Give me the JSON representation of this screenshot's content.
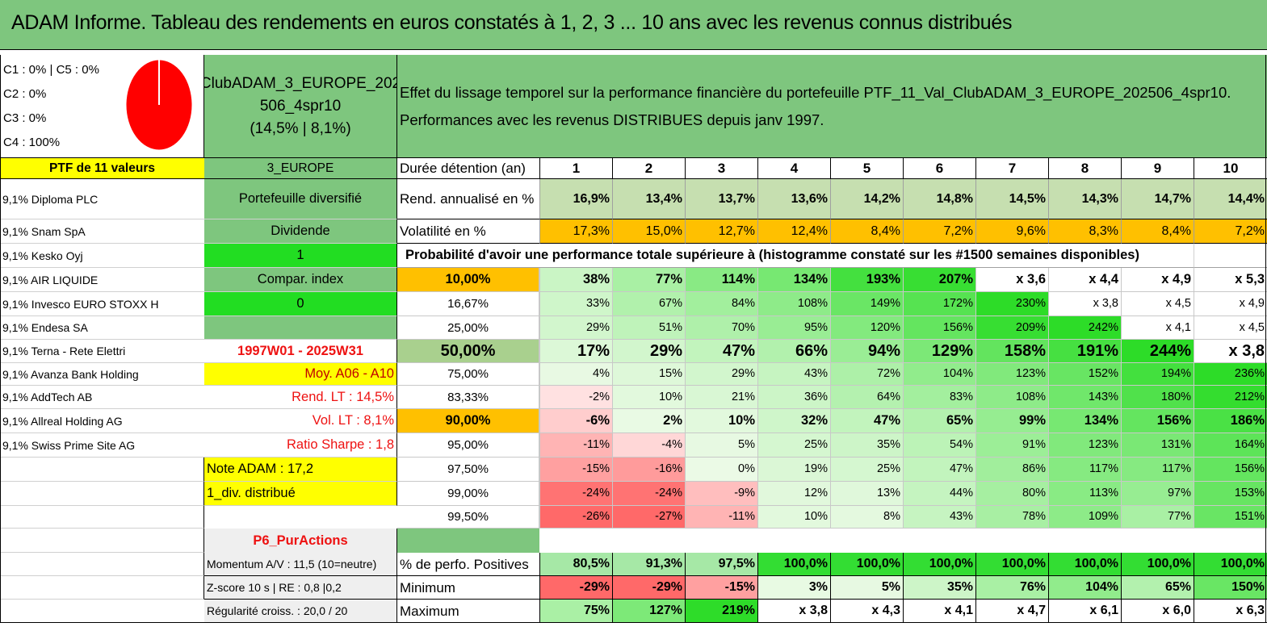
{
  "title": "ADAM Informe. Tableau des rendements en euros constatés à 1, 2, 3 ... 10 ans avec les revenus connus distribués",
  "pie": {
    "color": "#ff0000",
    "share": 1.0
  },
  "top_left_lines": [
    "C1 : 0% | C5 : 0%",
    "C2 : 0%",
    "C3 : 0%",
    "C4 : 100%"
  ],
  "portfolio_box": [
    "ClubADAM_3_EUROPE_202",
    "506_4spr10",
    "(14,5% | 8,1%)"
  ],
  "effect_text": [
    "Effet du lissage temporel sur la performance financière du portefeuille PTF_11_Val_ClubADAM_3_EUROPE_202506_4spr10.",
    "Performances avec les revenus DISTRIBUES depuis janv 1997."
  ],
  "ptf_header": "PTF de 11 valeurs",
  "zone_header": "3_EUROPE",
  "duration_label": "Durée détention (an)",
  "years": [
    "1",
    "2",
    "3",
    "4",
    "5",
    "6",
    "7",
    "8",
    "9",
    "10"
  ],
  "holdings": [
    "9,1% Diploma PLC",
    "9,1% Snam SpA",
    "9,1% Kesko Oyj",
    "9,1% AIR LIQUIDE",
    "9,1% Invesco EURO STOXX H",
    "9,1% Endesa SA",
    "9,1% Terna - Rete Elettri",
    "9,1% Avanza Bank Holding",
    "9,1% AddTech AB",
    "9,1% Allreal Holding AG",
    "9,1% Swiss Prime Site AG"
  ],
  "info_col": [
    "Portefeuille diversifié",
    "Dividende",
    "1",
    "Compar. index",
    "0",
    "",
    "1997W01 - 2025W31",
    "Moy. A06 - A10",
    "Rend. LT : 14,5%",
    "Vol. LT : 8,1%",
    "Ratio Sharpe : 1,8",
    "Note ADAM : 17,2",
    "1_div. distribué"
  ],
  "strategy_label": "P6_PurActions",
  "rend_label": "Rend. annualisé en %",
  "rend_values": [
    "16,9%",
    "13,4%",
    "13,7%",
    "13,6%",
    "14,2%",
    "14,8%",
    "14,5%",
    "14,3%",
    "14,7%",
    "14,4%"
  ],
  "vol_label": "Volatilité en %",
  "vol_values": [
    "17,3%",
    "15,0%",
    "12,7%",
    "12,4%",
    "8,4%",
    "7,2%",
    "9,6%",
    "8,3%",
    "8,4%",
    "7,2%"
  ],
  "prob_title": "Probabilité d'avoir une performance totale supérieure à (histogramme constaté sur les #1500 semaines disponibles)",
  "prob_rows": [
    {
      "p": "10,00%",
      "v": [
        "38%",
        "77%",
        "114%",
        "134%",
        "193%",
        "207%",
        "x 3,6",
        "x 4,4",
        "x 4,9",
        "x 5,3"
      ]
    },
    {
      "p": "16,67%",
      "v": [
        "33%",
        "67%",
        "84%",
        "108%",
        "149%",
        "172%",
        "230%",
        "x 3,8",
        "x 4,5",
        "x 4,9"
      ]
    },
    {
      "p": "25,00%",
      "v": [
        "29%",
        "51%",
        "70%",
        "95%",
        "120%",
        "156%",
        "209%",
        "242%",
        "x 4,1",
        "x 4,5"
      ]
    },
    {
      "p": "50,00%",
      "v": [
        "17%",
        "29%",
        "47%",
        "66%",
        "94%",
        "129%",
        "158%",
        "191%",
        "244%",
        "x 3,8"
      ]
    },
    {
      "p": "75,00%",
      "v": [
        "4%",
        "15%",
        "29%",
        "43%",
        "72%",
        "104%",
        "123%",
        "152%",
        "194%",
        "236%"
      ]
    },
    {
      "p": "83,33%",
      "v": [
        "-2%",
        "10%",
        "21%",
        "36%",
        "64%",
        "83%",
        "108%",
        "143%",
        "180%",
        "212%"
      ]
    },
    {
      "p": "90,00%",
      "v": [
        "-6%",
        "2%",
        "10%",
        "32%",
        "47%",
        "65%",
        "99%",
        "134%",
        "156%",
        "186%"
      ]
    },
    {
      "p": "95,00%",
      "v": [
        "-11%",
        "-4%",
        "5%",
        "25%",
        "35%",
        "54%",
        "91%",
        "123%",
        "131%",
        "164%"
      ]
    },
    {
      "p": "97,50%",
      "v": [
        "-15%",
        "-16%",
        "0%",
        "19%",
        "25%",
        "47%",
        "86%",
        "117%",
        "117%",
        "156%"
      ]
    },
    {
      "p": "99,00%",
      "v": [
        "-24%",
        "-24%",
        "-9%",
        "12%",
        "13%",
        "44%",
        "80%",
        "113%",
        "97%",
        "153%"
      ]
    },
    {
      "p": "99,50%",
      "v": [
        "-26%",
        "-27%",
        "-11%",
        "10%",
        "8%",
        "43%",
        "78%",
        "109%",
        "77%",
        "151%"
      ]
    }
  ],
  "stats_left": [
    "Momentum A/V : 11,5 (10=neutre)",
    "Z-score 10 s | RE : 0,8 |0,2",
    "Régularité croiss. : 20,0 / 20"
  ],
  "stats": [
    {
      "label": "% de perfo. Positives",
      "v": [
        "80,5%",
        "91,3%",
        "97,5%",
        "100,0%",
        "100,0%",
        "100,0%",
        "100,0%",
        "100,0%",
        "100,0%",
        "100,0%"
      ]
    },
    {
      "label": "Minimum",
      "v": [
        "-29%",
        "-29%",
        "-15%",
        "3%",
        "5%",
        "35%",
        "76%",
        "104%",
        "65%",
        "150%"
      ]
    },
    {
      "label": "Maximum",
      "v": [
        "75%",
        "127%",
        "219%",
        "x 3,8",
        "x 4,3",
        "x 4,1",
        "x 4,7",
        "x 6,1",
        "x 6,0",
        "x 6,3"
      ]
    }
  ],
  "colors": {
    "title_bg": "#7ec67e",
    "header_yellow": "#ffff00",
    "info_green": "#7ec67e",
    "bright_green": "#22dd22",
    "orange": "#ffc000",
    "date_red": "#ee1111",
    "rend_bg": "#c6dfb0",
    "median_bg": "#a9d08e",
    "light_gray": "#efefef"
  }
}
